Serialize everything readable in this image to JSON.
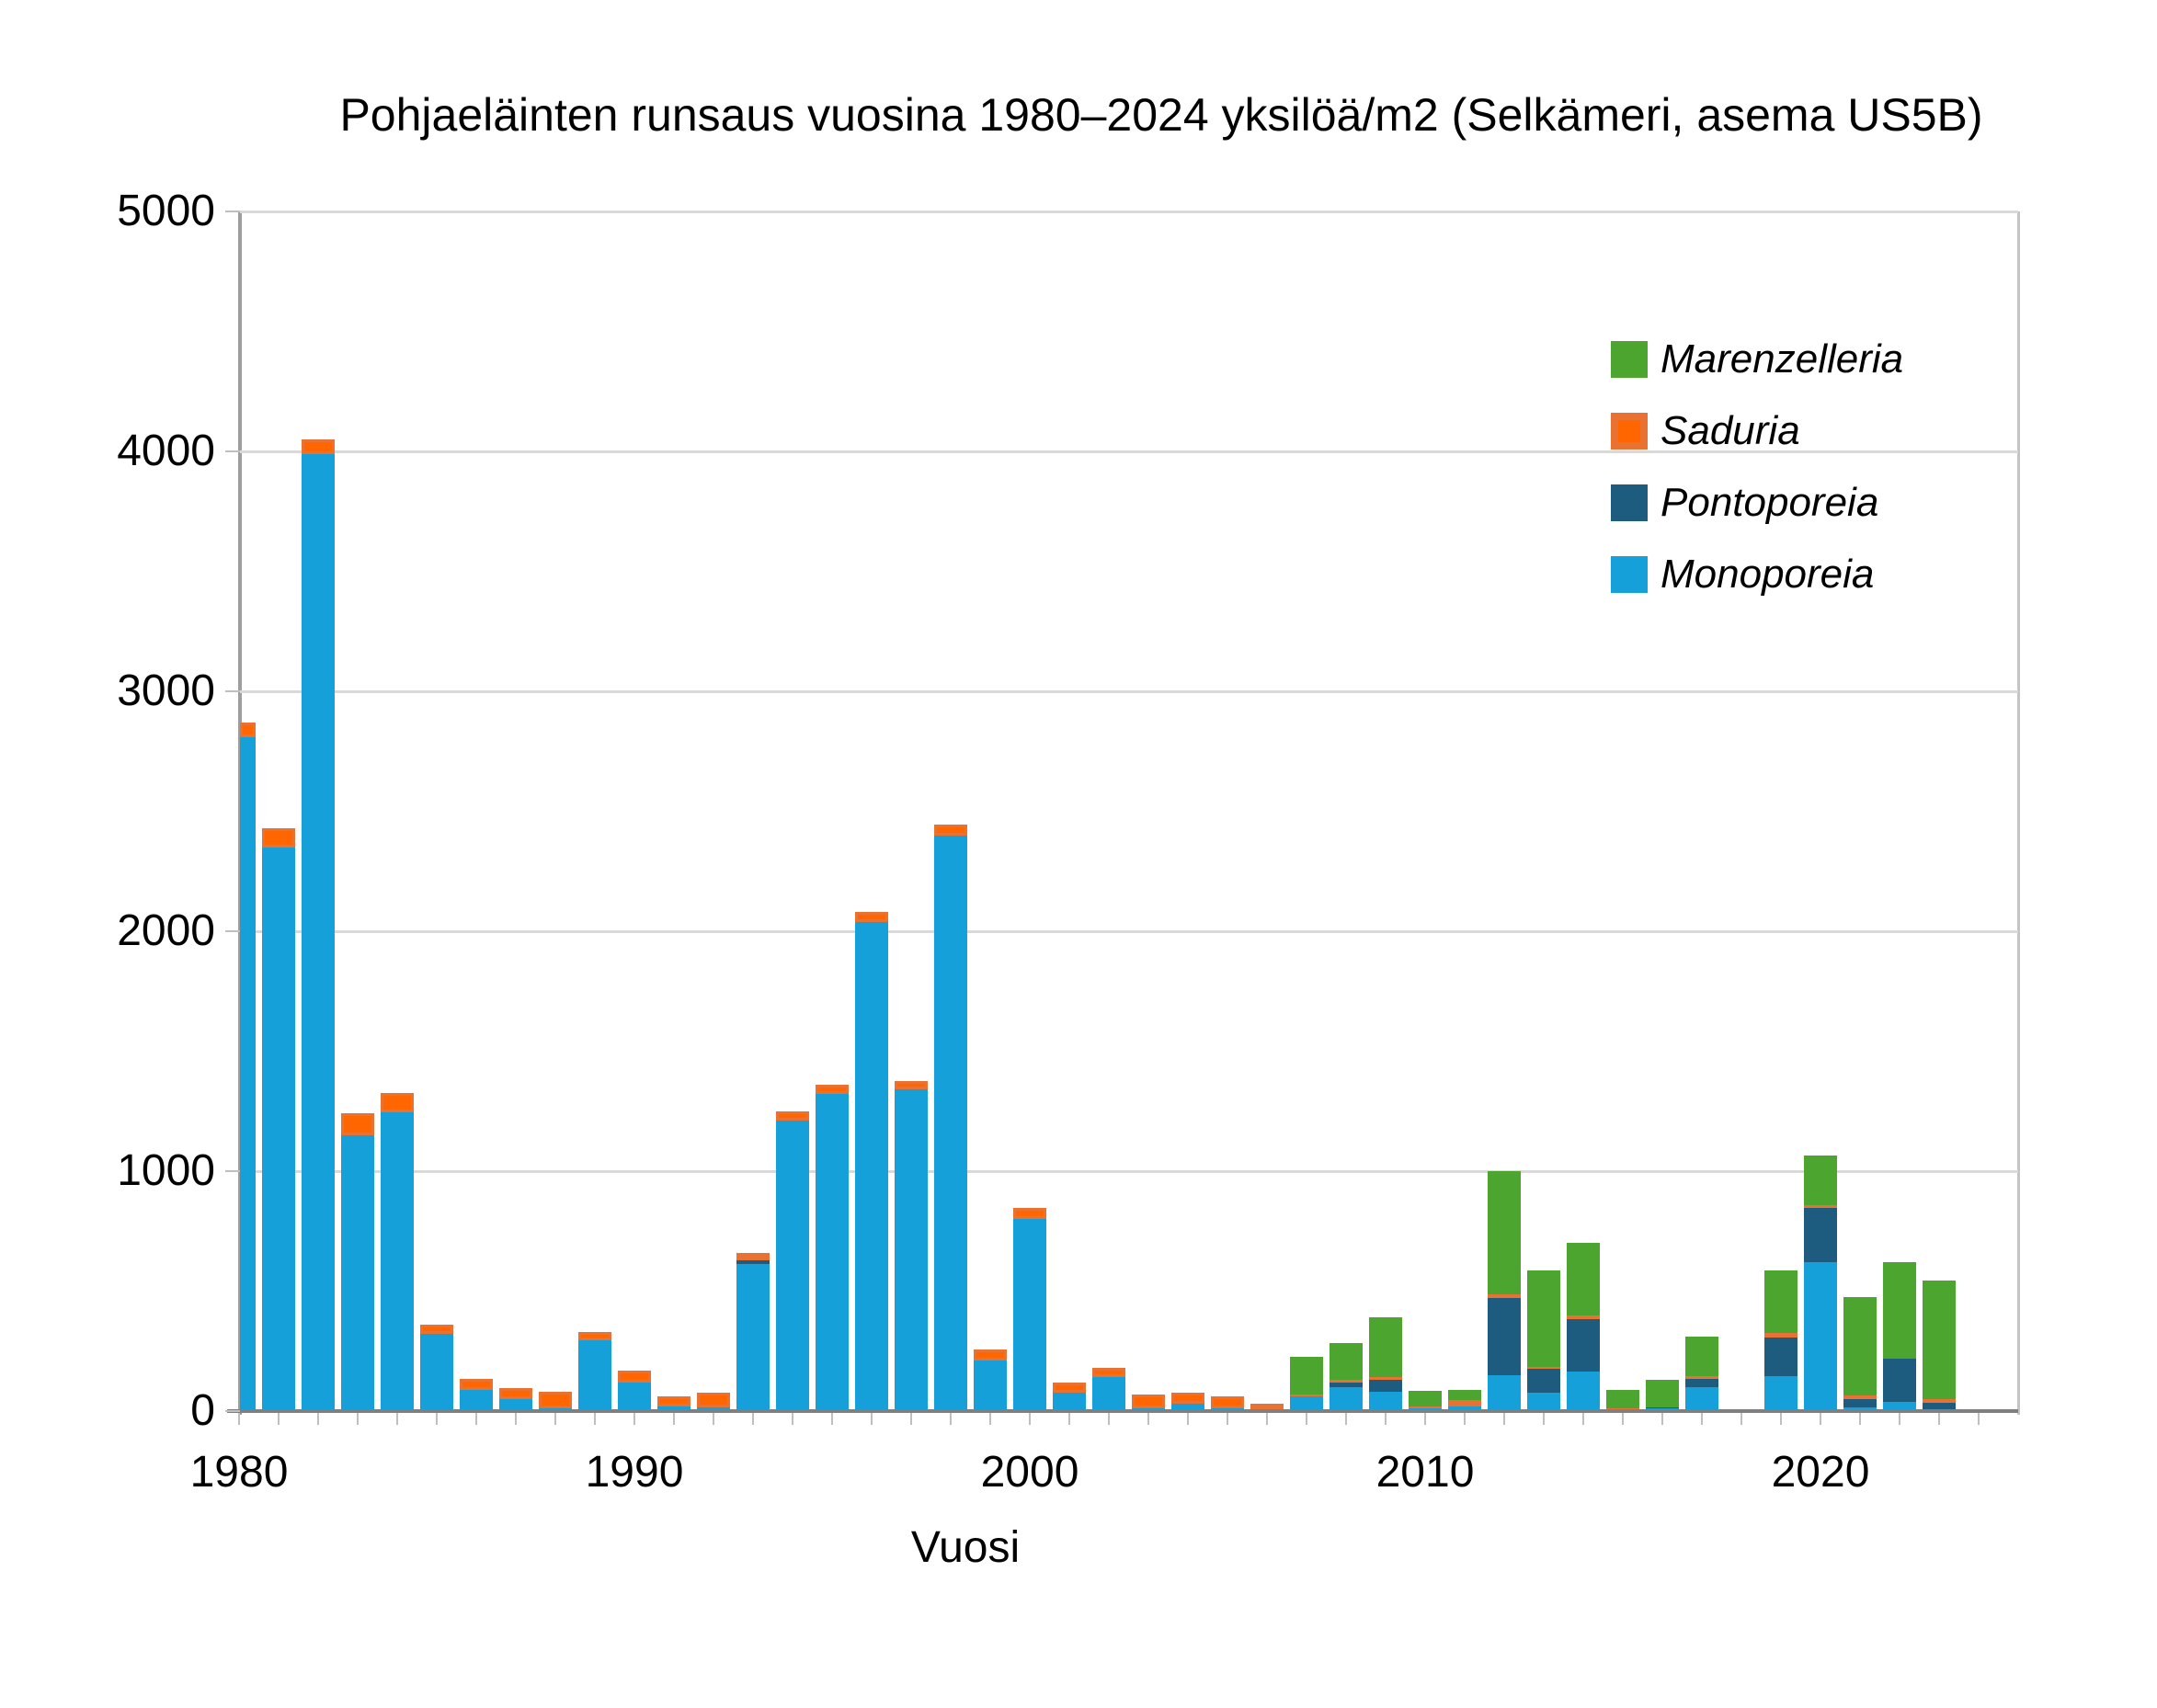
{
  "title": "Pohjaeläinten runsaus vuosina 1980–2024 yksilöä/m2 (Selkämeri, asema US5B)",
  "x_axis": {
    "label": "Vuosi",
    "tick_labels": [
      "1980",
      "1990",
      "2000",
      "2010",
      "2020"
    ]
  },
  "y_axis": {
    "tick_labels": [
      "0",
      "1000",
      "2000",
      "3000",
      "4000",
      "5000"
    ]
  },
  "legend": {
    "items": [
      {
        "label": "Marenzelleria",
        "color": "#4CA52E",
        "border": "#4CA52E"
      },
      {
        "label": "Saduria",
        "color": "#FF6600",
        "border": "#E97132"
      },
      {
        "label": "Pontoporeia",
        "color": "#1D5B7F",
        "border": "#1D5B7F"
      },
      {
        "label": "Monoporeia",
        "color": "#16A0DA",
        "border": "#16A0DA"
      }
    ]
  },
  "colors": {
    "gridline": "#d9d9d9",
    "axis_bottom": "#7f7f7f",
    "axis_left": "#9e9e9e",
    "plot_right_border": "#c4c4c4",
    "tick": "#bfbfbf",
    "background": "#ffffff"
  },
  "chart_data": {
    "type": "bar",
    "stacked": true,
    "title": "Pohjaeläinten runsaus vuosina 1980–2024 yksilöä/m2 (Selkämeri, asema US5B)",
    "xlabel": "Vuosi",
    "ylabel": "",
    "ylim": [
      0,
      5000
    ],
    "grid": "horizontal",
    "legend_position": "upper-right-inside",
    "x": [
      1980,
      1981,
      1982,
      1983,
      1984,
      1985,
      1986,
      1987,
      1988,
      1989,
      1990,
      1991,
      1992,
      1993,
      1994,
      1995,
      1996,
      1997,
      1998,
      1999,
      2000,
      2001,
      2002,
      2003,
      2004,
      2005,
      2006,
      2007,
      2008,
      2009,
      2010,
      2011,
      2012,
      2013,
      2014,
      2015,
      2016,
      2017,
      2018,
      2019,
      2020,
      2021,
      2022,
      2023,
      2024
    ],
    "series": [
      {
        "name": "Monoporeia",
        "color": "#16A0DA",
        "values": [
          2810,
          2350,
          3990,
          1150,
          1245,
          320,
          90,
          50,
          10,
          295,
          120,
          20,
          15,
          615,
          1210,
          1320,
          2040,
          1340,
          2400,
          210,
          800,
          75,
          140,
          10,
          30,
          10,
          5,
          60,
          100,
          80,
          10,
          20,
          150,
          75,
          165,
          0,
          10,
          100,
          0,
          145,
          620,
          15,
          40,
          5,
          0
        ]
      },
      {
        "name": "Pontoporeia",
        "color": "#1D5B7F",
        "values": [
          0,
          0,
          0,
          0,
          0,
          0,
          0,
          0,
          0,
          0,
          0,
          0,
          0,
          15,
          0,
          0,
          0,
          0,
          0,
          0,
          0,
          0,
          0,
          0,
          0,
          0,
          0,
          0,
          20,
          50,
          0,
          0,
          320,
          100,
          220,
          0,
          5,
          35,
          0,
          160,
          225,
          35,
          180,
          30,
          0
        ]
      },
      {
        "name": "Saduria",
        "color": "#FF6600",
        "border_color": "#E97132",
        "values": [
          60,
          80,
          60,
          90,
          80,
          40,
          45,
          45,
          70,
          35,
          50,
          40,
          60,
          30,
          40,
          40,
          40,
          35,
          45,
          45,
          45,
          45,
          40,
          60,
          45,
          50,
          25,
          10,
          10,
          10,
          10,
          25,
          15,
          10,
          15,
          10,
          0,
          10,
          0,
          20,
          15,
          15,
          0,
          15,
          0
        ]
      },
      {
        "name": "Marenzelleria",
        "color": "#4CA52E",
        "values": [
          0,
          0,
          0,
          0,
          0,
          0,
          0,
          0,
          0,
          0,
          0,
          0,
          0,
          0,
          0,
          0,
          0,
          0,
          0,
          0,
          0,
          0,
          0,
          0,
          0,
          0,
          0,
          155,
          155,
          250,
          65,
          45,
          515,
          400,
          300,
          80,
          115,
          165,
          0,
          260,
          205,
          410,
          400,
          495,
          0
        ]
      }
    ]
  }
}
